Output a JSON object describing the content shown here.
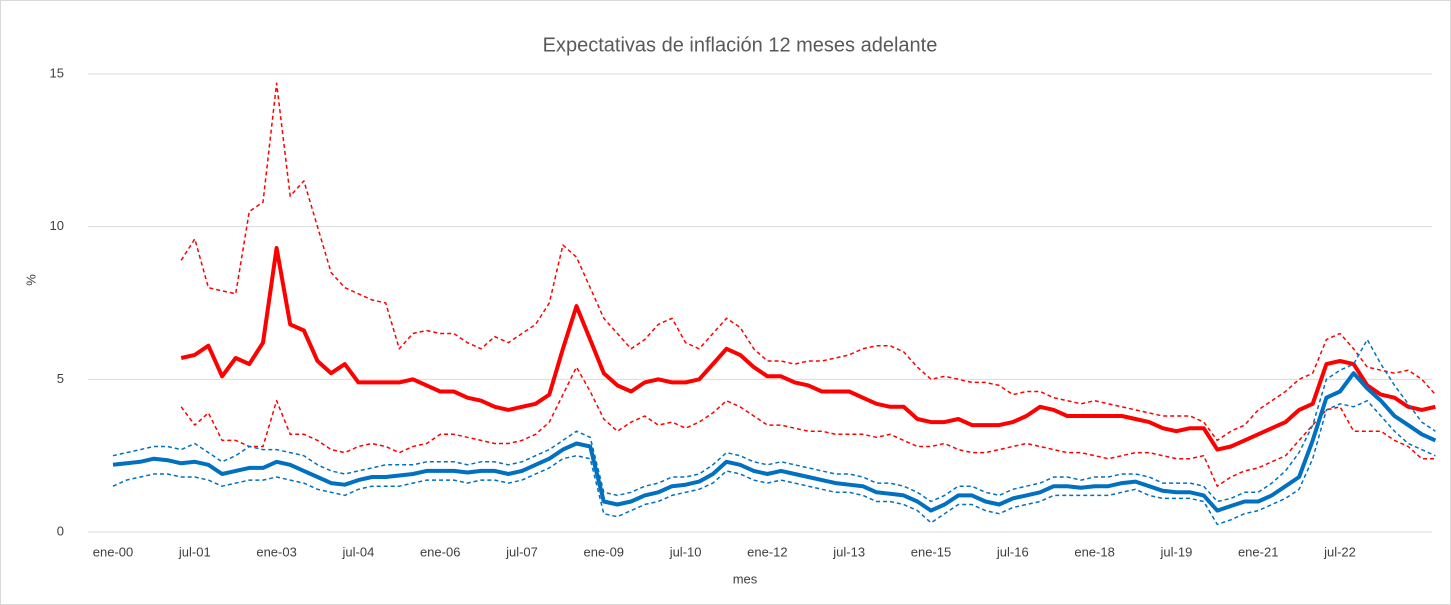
{
  "chart_data": {
    "type": "line",
    "title": "Expectativas de inflación 12 meses adelante",
    "xlabel": "mes",
    "ylabel": "%",
    "categories": [
      "ene-00",
      null,
      null,
      null,
      null,
      null,
      "jul-01",
      null,
      null,
      null,
      null,
      null,
      "ene-03",
      null,
      null,
      null,
      null,
      null,
      "jul-04",
      null,
      null,
      null,
      null,
      null,
      "ene-06",
      null,
      null,
      null,
      null,
      null,
      "jul-07",
      null,
      null,
      null,
      null,
      null,
      "ene-09",
      null,
      null,
      null,
      null,
      null,
      "jul-10",
      null,
      null,
      null,
      null,
      null,
      "ene-12",
      null,
      null,
      null,
      null,
      null,
      "jul-13",
      null,
      null,
      null,
      null,
      null,
      "ene-15",
      null,
      null,
      null,
      null,
      null,
      "jul-16",
      null,
      null,
      null,
      null,
      null,
      "ene-18",
      null,
      null,
      null,
      null,
      null,
      "jul-19",
      null,
      null,
      null,
      null,
      null,
      "ene-21",
      null,
      null,
      null,
      null,
      null,
      "jul-22",
      null,
      null,
      null,
      null,
      null,
      null,
      null
    ],
    "ylim": [
      0,
      15
    ],
    "yticks": [
      0,
      5,
      10,
      15
    ],
    "grid": true,
    "series": [
      {
        "color": "#ff0000",
        "dashed": true,
        "values": [
          null,
          null,
          null,
          null,
          null,
          8.9,
          9.6,
          8.0,
          7.9,
          7.8,
          10.5,
          10.8,
          14.7,
          11.0,
          11.5,
          10.0,
          8.5,
          8.0,
          7.8,
          7.6,
          7.5,
          6.0,
          6.5,
          6.6,
          6.5,
          6.5,
          6.2,
          6.0,
          6.4,
          6.2,
          6.5,
          6.8,
          7.5,
          9.4,
          9.0,
          8.0,
          7.0,
          6.5,
          6.0,
          6.3,
          6.8,
          7.0,
          6.2,
          6.0,
          6.5,
          7.0,
          6.7,
          6.0,
          5.6,
          5.6,
          5.5,
          5.6,
          5.6,
          5.7,
          5.8,
          6.0,
          6.1,
          6.1,
          5.9,
          5.4,
          5.0,
          5.1,
          5.0,
          4.9,
          4.9,
          4.8,
          4.5,
          4.6,
          4.6,
          4.4,
          4.3,
          4.2,
          4.3,
          4.2,
          4.1,
          4.0,
          3.9,
          3.8,
          3.8,
          3.8,
          3.6,
          3.0,
          3.3,
          3.5,
          4.0,
          4.3,
          4.6,
          5.0,
          5.2,
          6.3,
          6.5,
          6.0,
          5.4,
          5.3,
          5.2,
          5.3,
          5.0,
          4.5
        ]
      },
      {
        "color": "#ff0000",
        "dashed": true,
        "values": [
          null,
          null,
          null,
          null,
          null,
          4.1,
          3.5,
          3.9,
          3.0,
          3.0,
          2.8,
          2.8,
          4.3,
          3.2,
          3.2,
          3.0,
          2.7,
          2.6,
          2.8,
          2.9,
          2.8,
          2.6,
          2.8,
          2.9,
          3.2,
          3.2,
          3.1,
          3.0,
          2.9,
          2.9,
          3.0,
          3.2,
          3.6,
          4.5,
          5.4,
          4.6,
          3.7,
          3.3,
          3.6,
          3.8,
          3.5,
          3.6,
          3.4,
          3.6,
          3.9,
          4.3,
          4.1,
          3.8,
          3.5,
          3.5,
          3.4,
          3.3,
          3.3,
          3.2,
          3.2,
          3.2,
          3.1,
          3.2,
          3.0,
          2.8,
          2.8,
          2.9,
          2.7,
          2.6,
          2.6,
          2.7,
          2.8,
          2.9,
          2.8,
          2.7,
          2.6,
          2.6,
          2.5,
          2.4,
          2.5,
          2.6,
          2.6,
          2.5,
          2.4,
          2.4,
          2.5,
          1.5,
          1.8,
          2.0,
          2.1,
          2.3,
          2.5,
          3.0,
          3.5,
          4.0,
          4.1,
          3.3,
          3.3,
          3.3,
          3.0,
          2.8,
          2.4,
          2.4
        ]
      },
      {
        "color": "#ff0000",
        "dashed": false,
        "values": [
          null,
          null,
          null,
          null,
          null,
          5.7,
          5.8,
          6.1,
          5.1,
          5.7,
          5.5,
          6.2,
          9.3,
          6.8,
          6.6,
          5.6,
          5.2,
          5.5,
          4.9,
          4.9,
          4.9,
          4.9,
          5.0,
          4.8,
          4.6,
          4.6,
          4.4,
          4.3,
          4.1,
          4.0,
          4.1,
          4.2,
          4.5,
          6.0,
          7.4,
          6.3,
          5.2,
          4.8,
          4.6,
          4.9,
          5.0,
          4.9,
          4.9,
          5.0,
          5.5,
          6.0,
          5.8,
          5.4,
          5.1,
          5.1,
          4.9,
          4.8,
          4.6,
          4.6,
          4.6,
          4.4,
          4.2,
          4.1,
          4.1,
          3.7,
          3.6,
          3.6,
          3.7,
          3.5,
          3.5,
          3.5,
          3.6,
          3.8,
          4.1,
          4.0,
          3.8,
          3.8,
          3.8,
          3.8,
          3.8,
          3.7,
          3.6,
          3.4,
          3.3,
          3.4,
          3.4,
          2.7,
          2.8,
          3.0,
          3.2,
          3.4,
          3.6,
          4.0,
          4.2,
          5.5,
          5.6,
          5.5,
          4.8,
          4.5,
          4.4,
          4.1,
          4.0,
          4.1
        ]
      },
      {
        "color": "#0070c0",
        "dashed": true,
        "values": [
          2.5,
          2.6,
          2.7,
          2.8,
          2.8,
          2.7,
          2.9,
          2.6,
          2.3,
          2.5,
          2.8,
          2.7,
          2.7,
          2.6,
          2.5,
          2.2,
          2.0,
          1.9,
          2.0,
          2.1,
          2.2,
          2.2,
          2.2,
          2.3,
          2.3,
          2.3,
          2.2,
          2.3,
          2.3,
          2.2,
          2.3,
          2.5,
          2.7,
          3.0,
          3.3,
          3.1,
          1.3,
          1.2,
          1.3,
          1.5,
          1.6,
          1.8,
          1.8,
          1.9,
          2.2,
          2.6,
          2.5,
          2.3,
          2.2,
          2.3,
          2.2,
          2.1,
          2.0,
          1.9,
          1.9,
          1.8,
          1.6,
          1.6,
          1.5,
          1.3,
          1.0,
          1.2,
          1.5,
          1.5,
          1.3,
          1.2,
          1.4,
          1.5,
          1.6,
          1.8,
          1.8,
          1.7,
          1.8,
          1.8,
          1.9,
          1.9,
          1.8,
          1.6,
          1.6,
          1.6,
          1.5,
          1.0,
          1.1,
          1.3,
          1.3,
          1.6,
          2.0,
          2.6,
          3.5,
          5.0,
          5.3,
          5.5,
          6.3,
          5.5,
          4.8,
          4.2,
          3.6,
          3.3
        ]
      },
      {
        "color": "#0070c0",
        "dashed": true,
        "values": [
          1.5,
          1.7,
          1.8,
          1.9,
          1.9,
          1.8,
          1.8,
          1.7,
          1.5,
          1.6,
          1.7,
          1.7,
          1.8,
          1.7,
          1.6,
          1.4,
          1.3,
          1.2,
          1.4,
          1.5,
          1.5,
          1.5,
          1.6,
          1.7,
          1.7,
          1.7,
          1.6,
          1.7,
          1.7,
          1.6,
          1.7,
          1.9,
          2.1,
          2.4,
          2.5,
          2.4,
          0.6,
          0.5,
          0.7,
          0.9,
          1.0,
          1.2,
          1.3,
          1.4,
          1.6,
          2.0,
          1.9,
          1.7,
          1.6,
          1.7,
          1.6,
          1.5,
          1.4,
          1.3,
          1.3,
          1.2,
          1.0,
          1.0,
          0.9,
          0.7,
          0.3,
          0.6,
          0.9,
          0.9,
          0.7,
          0.6,
          0.8,
          0.9,
          1.0,
          1.2,
          1.2,
          1.2,
          1.2,
          1.2,
          1.3,
          1.4,
          1.2,
          1.1,
          1.1,
          1.1,
          1.0,
          0.25,
          0.4,
          0.6,
          0.7,
          0.9,
          1.1,
          1.4,
          2.4,
          4.0,
          4.2,
          4.1,
          4.3,
          3.8,
          3.3,
          2.9,
          2.7,
          2.5
        ]
      },
      {
        "color": "#0070c0",
        "dashed": false,
        "values": [
          2.2,
          2.25,
          2.3,
          2.4,
          2.35,
          2.25,
          2.3,
          2.2,
          1.9,
          2.0,
          2.1,
          2.1,
          2.3,
          2.2,
          2.0,
          1.8,
          1.6,
          1.55,
          1.7,
          1.8,
          1.8,
          1.85,
          1.9,
          2.0,
          2.0,
          2.0,
          1.95,
          2.0,
          2.0,
          1.9,
          2.0,
          2.2,
          2.4,
          2.7,
          2.9,
          2.8,
          1.0,
          0.9,
          1.0,
          1.2,
          1.3,
          1.5,
          1.55,
          1.65,
          1.9,
          2.3,
          2.2,
          2.0,
          1.9,
          2.0,
          1.9,
          1.8,
          1.7,
          1.6,
          1.55,
          1.5,
          1.3,
          1.25,
          1.2,
          1.0,
          0.7,
          0.9,
          1.2,
          1.2,
          1.0,
          0.9,
          1.1,
          1.2,
          1.3,
          1.5,
          1.5,
          1.45,
          1.5,
          1.5,
          1.6,
          1.65,
          1.5,
          1.35,
          1.3,
          1.3,
          1.2,
          0.7,
          0.85,
          1.0,
          1.0,
          1.2,
          1.5,
          1.8,
          3.0,
          4.4,
          4.6,
          5.2,
          4.7,
          4.3,
          3.8,
          3.5,
          3.2,
          3.0
        ]
      }
    ]
  }
}
